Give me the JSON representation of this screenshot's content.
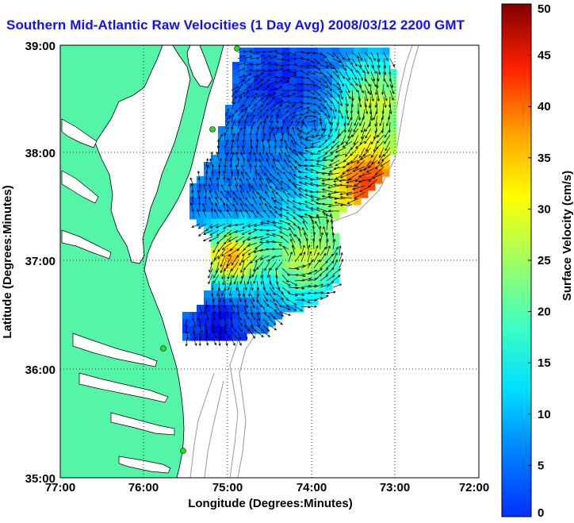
{
  "title": "Southern Mid-Atlantic Raw Velocities (1 Day Avg) 2008/03/12 2200 GMT",
  "xlabel": "Longitude (Degrees:Minutes)",
  "ylabel": "Latitude (Degrees:Minutes)",
  "colorbar_label": "Surface Velocity (cm/s)",
  "x_ticks": [
    "77:00",
    "76:00",
    "75:00",
    "74:00",
    "73:00",
    "72:00"
  ],
  "y_ticks": [
    "39:00",
    "38:00",
    "37:00",
    "36:00",
    "35:00"
  ],
  "cbar_ticks": [
    "0",
    "5",
    "10",
    "15",
    "20",
    "25",
    "30",
    "35",
    "40",
    "45",
    "50"
  ],
  "lon_range": [
    -77,
    -72
  ],
  "lat_range": [
    35,
    39
  ],
  "speed_range": [
    0,
    50
  ],
  "colors": {
    "land": "#55f5a8",
    "title": "#1010ff",
    "coast": "#000000",
    "bathy": "#999999"
  },
  "colormap": "jet",
  "grid": "dotted"
}
